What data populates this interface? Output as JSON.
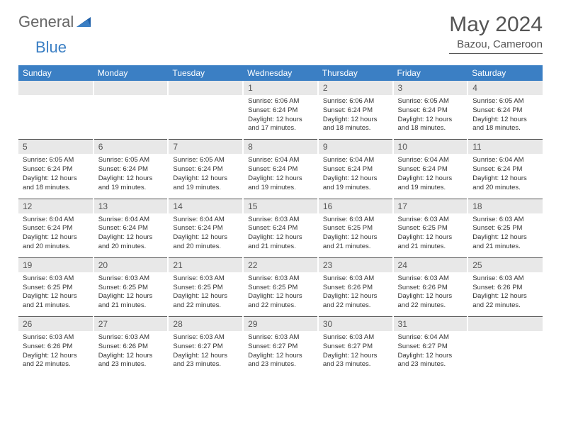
{
  "brand": {
    "part1": "General",
    "part2": "Blue"
  },
  "title": "May 2024",
  "location": "Bazou, Cameroon",
  "colors": {
    "header_bg": "#3b7fc4",
    "header_text": "#ffffff",
    "daynum_bg": "#e8e8e8",
    "page_bg": "#ffffff",
    "text": "#333333",
    "title_text": "#555555"
  },
  "dow": [
    "Sunday",
    "Monday",
    "Tuesday",
    "Wednesday",
    "Thursday",
    "Friday",
    "Saturday"
  ],
  "weeks": [
    {
      "nums": [
        "",
        "",
        "",
        "1",
        "2",
        "3",
        "4"
      ],
      "cells": [
        null,
        null,
        null,
        {
          "sunrise": "6:06 AM",
          "sunset": "6:24 PM",
          "daylight": "12 hours and 17 minutes."
        },
        {
          "sunrise": "6:06 AM",
          "sunset": "6:24 PM",
          "daylight": "12 hours and 18 minutes."
        },
        {
          "sunrise": "6:05 AM",
          "sunset": "6:24 PM",
          "daylight": "12 hours and 18 minutes."
        },
        {
          "sunrise": "6:05 AM",
          "sunset": "6:24 PM",
          "daylight": "12 hours and 18 minutes."
        }
      ]
    },
    {
      "nums": [
        "5",
        "6",
        "7",
        "8",
        "9",
        "10",
        "11"
      ],
      "cells": [
        {
          "sunrise": "6:05 AM",
          "sunset": "6:24 PM",
          "daylight": "12 hours and 18 minutes."
        },
        {
          "sunrise": "6:05 AM",
          "sunset": "6:24 PM",
          "daylight": "12 hours and 19 minutes."
        },
        {
          "sunrise": "6:05 AM",
          "sunset": "6:24 PM",
          "daylight": "12 hours and 19 minutes."
        },
        {
          "sunrise": "6:04 AM",
          "sunset": "6:24 PM",
          "daylight": "12 hours and 19 minutes."
        },
        {
          "sunrise": "6:04 AM",
          "sunset": "6:24 PM",
          "daylight": "12 hours and 19 minutes."
        },
        {
          "sunrise": "6:04 AM",
          "sunset": "6:24 PM",
          "daylight": "12 hours and 19 minutes."
        },
        {
          "sunrise": "6:04 AM",
          "sunset": "6:24 PM",
          "daylight": "12 hours and 20 minutes."
        }
      ]
    },
    {
      "nums": [
        "12",
        "13",
        "14",
        "15",
        "16",
        "17",
        "18"
      ],
      "cells": [
        {
          "sunrise": "6:04 AM",
          "sunset": "6:24 PM",
          "daylight": "12 hours and 20 minutes."
        },
        {
          "sunrise": "6:04 AM",
          "sunset": "6:24 PM",
          "daylight": "12 hours and 20 minutes."
        },
        {
          "sunrise": "6:04 AM",
          "sunset": "6:24 PM",
          "daylight": "12 hours and 20 minutes."
        },
        {
          "sunrise": "6:03 AM",
          "sunset": "6:24 PM",
          "daylight": "12 hours and 21 minutes."
        },
        {
          "sunrise": "6:03 AM",
          "sunset": "6:25 PM",
          "daylight": "12 hours and 21 minutes."
        },
        {
          "sunrise": "6:03 AM",
          "sunset": "6:25 PM",
          "daylight": "12 hours and 21 minutes."
        },
        {
          "sunrise": "6:03 AM",
          "sunset": "6:25 PM",
          "daylight": "12 hours and 21 minutes."
        }
      ]
    },
    {
      "nums": [
        "19",
        "20",
        "21",
        "22",
        "23",
        "24",
        "25"
      ],
      "cells": [
        {
          "sunrise": "6:03 AM",
          "sunset": "6:25 PM",
          "daylight": "12 hours and 21 minutes."
        },
        {
          "sunrise": "6:03 AM",
          "sunset": "6:25 PM",
          "daylight": "12 hours and 21 minutes."
        },
        {
          "sunrise": "6:03 AM",
          "sunset": "6:25 PM",
          "daylight": "12 hours and 22 minutes."
        },
        {
          "sunrise": "6:03 AM",
          "sunset": "6:25 PM",
          "daylight": "12 hours and 22 minutes."
        },
        {
          "sunrise": "6:03 AM",
          "sunset": "6:26 PM",
          "daylight": "12 hours and 22 minutes."
        },
        {
          "sunrise": "6:03 AM",
          "sunset": "6:26 PM",
          "daylight": "12 hours and 22 minutes."
        },
        {
          "sunrise": "6:03 AM",
          "sunset": "6:26 PM",
          "daylight": "12 hours and 22 minutes."
        }
      ]
    },
    {
      "nums": [
        "26",
        "27",
        "28",
        "29",
        "30",
        "31",
        ""
      ],
      "cells": [
        {
          "sunrise": "6:03 AM",
          "sunset": "6:26 PM",
          "daylight": "12 hours and 22 minutes."
        },
        {
          "sunrise": "6:03 AM",
          "sunset": "6:26 PM",
          "daylight": "12 hours and 23 minutes."
        },
        {
          "sunrise": "6:03 AM",
          "sunset": "6:27 PM",
          "daylight": "12 hours and 23 minutes."
        },
        {
          "sunrise": "6:03 AM",
          "sunset": "6:27 PM",
          "daylight": "12 hours and 23 minutes."
        },
        {
          "sunrise": "6:03 AM",
          "sunset": "6:27 PM",
          "daylight": "12 hours and 23 minutes."
        },
        {
          "sunrise": "6:04 AM",
          "sunset": "6:27 PM",
          "daylight": "12 hours and 23 minutes."
        },
        null
      ]
    }
  ],
  "labels": {
    "sunrise": "Sunrise:",
    "sunset": "Sunset:",
    "daylight": "Daylight:"
  }
}
